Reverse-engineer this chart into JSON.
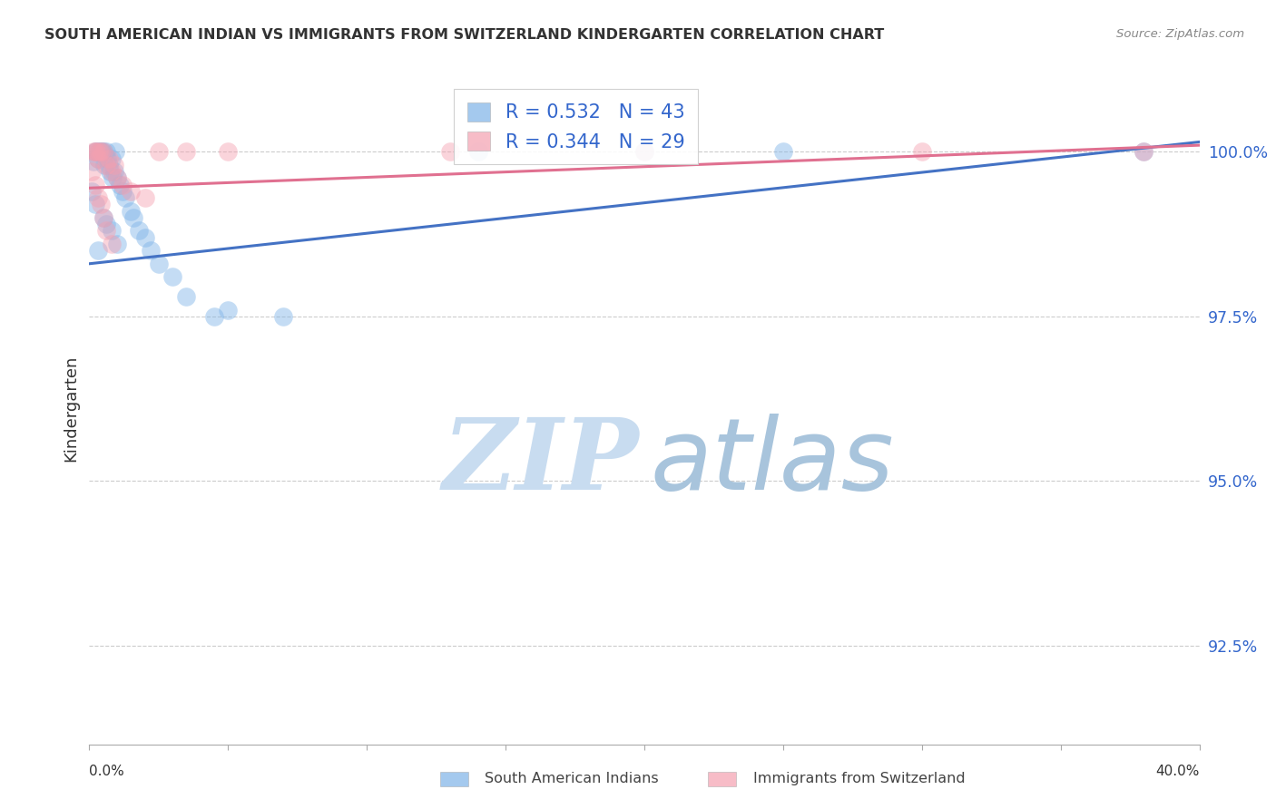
{
  "title": "SOUTH AMERICAN INDIAN VS IMMIGRANTS FROM SWITZERLAND KINDERGARTEN CORRELATION CHART",
  "source": "Source: ZipAtlas.com",
  "ylabel": "Kindergarten",
  "yticks": [
    92.5,
    95.0,
    97.5,
    100.0
  ],
  "ytick_labels": [
    "92.5%",
    "95.0%",
    "97.5%",
    "100.0%"
  ],
  "xlim": [
    0.0,
    40.0
  ],
  "ylim": [
    91.0,
    101.2
  ],
  "legend1_R": "0.532",
  "legend1_N": "43",
  "legend2_R": "0.344",
  "legend2_N": "29",
  "legend1_label": "South American Indians",
  "legend2_label": "Immigrants from Switzerland",
  "color_blue": "#7EB3E8",
  "color_pink": "#F4A0B0",
  "line_blue": "#4472C4",
  "line_pink": "#E07090",
  "blue_scatter_x": [
    0.15,
    0.2,
    0.25,
    0.3,
    0.35,
    0.4,
    0.45,
    0.5,
    0.55,
    0.6,
    0.65,
    0.7,
    0.75,
    0.8,
    0.85,
    0.9,
    0.95,
    1.0,
    1.1,
    1.2,
    1.3,
    1.5,
    1.6,
    1.8,
    2.0,
    2.2,
    2.5,
    3.0,
    3.5,
    4.5,
    5.0,
    7.0,
    0.1,
    0.2,
    0.3,
    0.5,
    0.6,
    0.8,
    1.0,
    14.0,
    20.0,
    25.0,
    38.0
  ],
  "blue_scatter_y": [
    99.85,
    100.0,
    100.0,
    99.9,
    100.0,
    100.0,
    100.0,
    100.0,
    99.8,
    100.0,
    99.9,
    99.8,
    99.7,
    99.9,
    99.6,
    99.7,
    100.0,
    99.6,
    99.5,
    99.4,
    99.3,
    99.1,
    99.0,
    98.8,
    98.7,
    98.5,
    98.3,
    98.1,
    97.8,
    97.5,
    97.6,
    97.5,
    99.4,
    99.2,
    98.5,
    99.0,
    98.9,
    98.8,
    98.6,
    100.0,
    100.0,
    100.0,
    100.0
  ],
  "pink_scatter_x": [
    0.15,
    0.2,
    0.25,
    0.3,
    0.35,
    0.4,
    0.5,
    0.6,
    0.7,
    0.8,
    0.9,
    1.0,
    1.2,
    1.5,
    2.0,
    0.1,
    0.2,
    0.3,
    0.4,
    0.5,
    0.6,
    0.8,
    2.5,
    3.5,
    5.0,
    13.0,
    20.0,
    30.0,
    38.0
  ],
  "pink_scatter_y": [
    100.0,
    100.0,
    100.0,
    99.9,
    100.0,
    100.0,
    100.0,
    99.8,
    99.9,
    99.7,
    99.8,
    99.6,
    99.5,
    99.4,
    99.3,
    99.7,
    99.5,
    99.3,
    99.2,
    99.0,
    98.8,
    98.6,
    100.0,
    100.0,
    100.0,
    100.0,
    100.0,
    100.0,
    100.0
  ],
  "blue_line_x0": 0.0,
  "blue_line_y0": 98.3,
  "blue_line_x1": 40.0,
  "blue_line_y1": 100.15,
  "pink_line_x0": 0.0,
  "pink_line_y0": 99.45,
  "pink_line_x1": 40.0,
  "pink_line_y1": 100.1,
  "xticks": [
    0,
    5,
    10,
    15,
    20,
    25,
    30,
    35,
    40
  ],
  "watermark_zip_color": "#C8DCF0",
  "watermark_atlas_color": "#A8C4DC"
}
